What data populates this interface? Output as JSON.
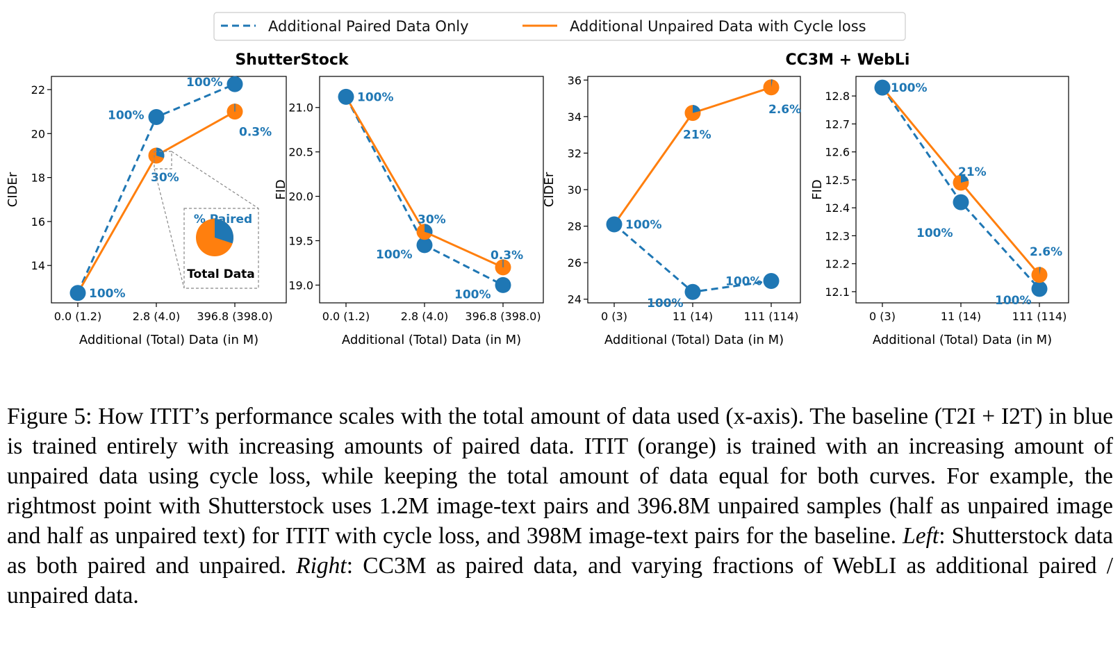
{
  "legend": {
    "paired_label": "Additional Paired Data Only",
    "unpaired_label": "Additional Unpaired Data with Cycle loss"
  },
  "group_titles": [
    "ShutterStock",
    "CC3M + WebLi"
  ],
  "colors": {
    "paired": "#1f77b4",
    "unpaired": "#ff7f0e",
    "pct_text": "#1f77b4"
  },
  "inset": {
    "title": "% Paired",
    "label": "Total Data"
  },
  "chart_data": [
    {
      "type": "line",
      "group": "ShutterStock",
      "xlabel": "Additional (Total) Data (in M)",
      "ylabel": "CIDEr",
      "categories": [
        "0.0 (1.2)",
        "2.8 (4.0)",
        "396.8 (398.0)"
      ],
      "ylim": [
        12.3,
        22.6
      ],
      "yticks": [
        "14",
        "16",
        "18",
        "20",
        "22"
      ],
      "series": [
        {
          "name": "Additional Paired Data Only",
          "values": [
            12.75,
            20.75,
            22.25
          ],
          "labels": [
            "100%",
            "100%",
            "100%"
          ],
          "paired_fraction": [
            1,
            1,
            1
          ]
        },
        {
          "name": "Additional Unpaired Data with Cycle loss",
          "values": [
            12.75,
            19.0,
            21.0
          ],
          "labels": [
            "",
            "30%",
            "0.3%"
          ],
          "paired_fraction": [
            1,
            0.3,
            0.003
          ]
        }
      ]
    },
    {
      "type": "line",
      "group": "ShutterStock",
      "xlabel": "Additional (Total) Data (in M)",
      "ylabel": "FID",
      "categories": [
        "0.0 (1.2)",
        "2.8 (4.0)",
        "396.8 (398.0)"
      ],
      "ylim": [
        18.8,
        21.35
      ],
      "yticks": [
        "19.0",
        "19.5",
        "20.0",
        "20.5",
        "21.0"
      ],
      "series": [
        {
          "name": "Additional Paired Data Only",
          "values": [
            21.12,
            19.45,
            19.0
          ],
          "labels": [
            "100%",
            "100%",
            "100%"
          ],
          "paired_fraction": [
            1,
            1,
            1
          ]
        },
        {
          "name": "Additional Unpaired Data with Cycle loss",
          "values": [
            21.12,
            19.6,
            19.2
          ],
          "labels": [
            "",
            "30%",
            "0.3%"
          ],
          "paired_fraction": [
            1,
            0.3,
            0.003
          ]
        }
      ]
    },
    {
      "type": "line",
      "group": "CC3M + WebLi",
      "xlabel": "Additional (Total) Data (in M)",
      "ylabel": "CIDEr",
      "categories": [
        "0 (3)",
        "11 (14)",
        "111 (114)"
      ],
      "ylim": [
        23.8,
        36.2
      ],
      "yticks": [
        "24",
        "26",
        "28",
        "30",
        "32",
        "34",
        "36"
      ],
      "series": [
        {
          "name": "Additional Paired Data Only",
          "values": [
            28.1,
            24.4,
            25.0
          ],
          "labels": [
            "100%",
            "100%",
            "100%"
          ],
          "paired_fraction": [
            1,
            1,
            1
          ]
        },
        {
          "name": "Additional Unpaired Data with Cycle loss",
          "values": [
            28.1,
            34.2,
            35.6
          ],
          "labels": [
            "",
            "21%",
            "2.6%"
          ],
          "paired_fraction": [
            1,
            0.21,
            0.026
          ]
        }
      ]
    },
    {
      "type": "line",
      "group": "CC3M + WebLi",
      "xlabel": "Additional (Total) Data (in M)",
      "ylabel": "FID",
      "categories": [
        "0 (3)",
        "11 (14)",
        "111 (114)"
      ],
      "ylim": [
        12.06,
        12.87
      ],
      "yticks": [
        "12.1",
        "12.2",
        "12.3",
        "12.4",
        "12.5",
        "12.6",
        "12.7",
        "12.8"
      ],
      "series": [
        {
          "name": "Additional Paired Data Only",
          "values": [
            12.83,
            12.42,
            12.11
          ],
          "labels": [
            "100%",
            "100%",
            "100%"
          ],
          "paired_fraction": [
            1,
            1,
            1
          ]
        },
        {
          "name": "Additional Unpaired Data with Cycle loss",
          "values": [
            12.83,
            12.49,
            12.16
          ],
          "labels": [
            "",
            "21%",
            "2.6%"
          ],
          "paired_fraction": [
            1,
            0.21,
            0.026
          ]
        }
      ]
    }
  ],
  "caption": {
    "p1": "Figure 5:  How ITIT’s performance scales with the total amount of data used (x-axis).  The baseline (T2I + I2T) in blue is trained entirely with increasing amounts of paired data.  ITIT  (orange) is trained with an increasing amount of unpaired data using cycle loss, while keeping the total amount of data equal for both curves. For example, the rightmost point with Shutterstock uses 1.2M image-text pairs and 396.8M unpaired samples (half as unpaired image and half as unpaired text) for ITIT  with cycle loss, and 398M image-text pairs for the baseline. ",
    "left_label": "Left",
    "p2": ": Shutterstock data as both paired and unpaired.  ",
    "right_label": "Right",
    "p3": ":  CC3M as paired data, and varying fractions of WebLI as additional paired / unpaired data."
  }
}
